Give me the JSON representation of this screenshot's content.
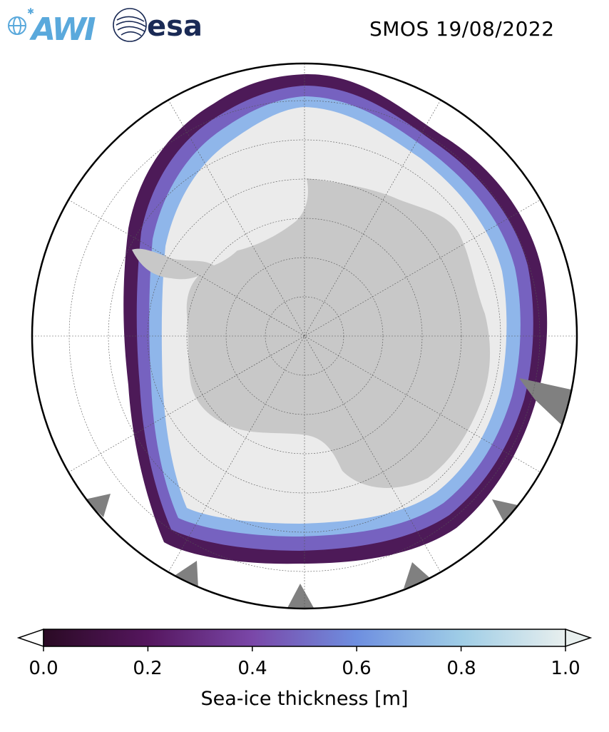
{
  "header": {
    "title": "SMOS 19/08/2022",
    "logos": [
      {
        "icon": "awi-logo",
        "text": "AWI",
        "color": "#5aa9dc"
      },
      {
        "icon": "esa-logo",
        "text": "esa",
        "color": "#1a2a55"
      }
    ]
  },
  "map": {
    "projection": "south-polar-stereographic",
    "land_color": "#c8c8c8",
    "ice_shelf_color": "#ebebeb",
    "no_data_color": "#808080",
    "ocean_color": "#ffffff",
    "grid": true
  },
  "colorbar": {
    "label": "Sea-ice thickness [m]",
    "min": 0.0,
    "max": 1.0,
    "extend": "both",
    "ticks": [
      "0.0",
      "0.2",
      "0.4",
      "0.6",
      "0.8",
      "1.0"
    ],
    "colors": [
      "#2a0a24",
      "#55165e",
      "#7a47a8",
      "#6e8fe0",
      "#9fcde6",
      "#e8efee"
    ]
  }
}
